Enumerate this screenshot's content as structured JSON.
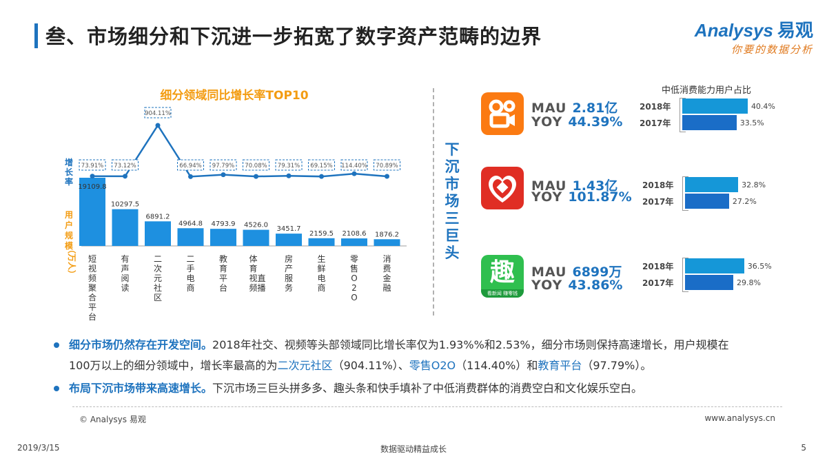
{
  "header": {
    "title": "叁、市场细分和下沉进一步拓宽了数字资产范畴的边界",
    "logo_brand": "nalysys",
    "logo_brand_a": "A",
    "logo_brand_cn": "易观",
    "logo_tagline": "你要的数据分析"
  },
  "chart_data": {
    "type": "bar+line",
    "title": "细分领域同比增长率TOP10",
    "line_axis_label": "增长率",
    "bar_axis_label": "用户规模",
    "bar_axis_unit": "（万人）",
    "categories": [
      "短视频聚合平台",
      "有声阅读",
      "二次元社区",
      "二手电商",
      "教育平台",
      "体育视频直播",
      "房产服务",
      "生鲜电商",
      "零售O2O",
      "消费金融"
    ],
    "category_lines": [
      [
        "短",
        "视",
        "频",
        "聚",
        "合",
        "平",
        "台"
      ],
      [
        "有",
        "声",
        "阅",
        "读"
      ],
      [
        "二",
        "次",
        "元",
        "社",
        "区"
      ],
      [
        "二",
        "手",
        "电",
        "商"
      ],
      [
        "教",
        "育",
        "平",
        "台"
      ],
      [
        "体",
        "育",
        "视",
        "频",
        "直",
        "播"
      ],
      [
        "房",
        "产",
        "服",
        "务"
      ],
      [
        "生",
        "鲜",
        "电",
        "商"
      ],
      [
        "零",
        "售",
        "O",
        "2",
        "O"
      ],
      [
        "消",
        "费",
        "金",
        "融"
      ]
    ],
    "series": [
      {
        "name": "用户规模",
        "unit": "万人",
        "values": [
          19109.8,
          10297.5,
          6891.2,
          4964.8,
          4793.9,
          4526.0,
          3451.7,
          2159.5,
          2108.6,
          1876.2
        ]
      },
      {
        "name": "增长率",
        "unit": "%",
        "values": [
          73.91,
          73.12,
          904.11,
          66.94,
          97.79,
          70.08,
          79.31,
          69.15,
          114.4,
          70.89
        ]
      }
    ],
    "value_labels": [
      "19109.8",
      "10297.5",
      "6891.2",
      "4964.8",
      "4793.9",
      "4526.0",
      "3451.7",
      "2159.5",
      "2108.6",
      "1876.2"
    ],
    "rate_labels": [
      "73.91%",
      "73.12%",
      "904.11%",
      "66.94%",
      "97.79%",
      "70.08%",
      "79.31%",
      "69.15%",
      "114.40%",
      "70.89%"
    ],
    "bar_max": 19109.8,
    "rate_range": [
      60,
      904.11
    ]
  },
  "lower_market": {
    "label": "下沉市场三巨头",
    "ratio_title": "中低消费能力用户占比",
    "apps": [
      {
        "name": "快手",
        "mau_label": "MAU",
        "mau": "2.81亿",
        "yoy_label": "YOY",
        "yoy": "44.39%",
        "ratios": [
          {
            "year": "2018年",
            "value": 40.4,
            "label": "40.4%"
          },
          {
            "year": "2017年",
            "value": 33.5,
            "label": "33.5%"
          }
        ]
      },
      {
        "name": "拼多多",
        "mau_label": "MAU",
        "mau": "1.43亿",
        "yoy_label": "YOY",
        "yoy": "101.87%",
        "ratios": [
          {
            "year": "2018年",
            "value": 32.8,
            "label": "32.8%"
          },
          {
            "year": "2017年",
            "value": 27.2,
            "label": "27.2%"
          }
        ]
      },
      {
        "name": "趣头条",
        "mau_label": "MAU",
        "mau": "6899万",
        "yoy_label": "YOY",
        "yoy": "43.86%",
        "icon_char": "趣",
        "icon_sub": "看新闻 赚零钱",
        "ratios": [
          {
            "year": "2018年",
            "value": 36.5,
            "label": "36.5%"
          },
          {
            "year": "2017年",
            "value": 29.8,
            "label": "29.8%"
          }
        ]
      }
    ]
  },
  "bullets": {
    "b1_strong": "细分市场仍然存在开发空间。",
    "b1_text1": "2018年社交、视频等头部领域同比增长率仅为1.93%%和2.53%，细分市场则保持高速增长，用户规模在",
    "b1_text2": "100万以上的细分领域中，增长率最高的为",
    "b1_hl1": "二次元社区",
    "b1_text3": "（904.11%）、",
    "b1_hl2": "零售O2O",
    "b1_text4": "（114.40%）和",
    "b1_hl3": "教育平台",
    "b1_text5": "（97.79%）。",
    "b2_strong": "布局下沉市场带来高速增长。",
    "b2_text": "下沉市场三巨头拼多多、趣头条和快手填补了中低消费群体的消费空白和文化娱乐空白。"
  },
  "footer": {
    "copyright": "© Analysys 易观",
    "website": "www.analysys.cn",
    "date": "2019/3/15",
    "slogan": "数据驱动精益成长",
    "page": "5"
  },
  "colors": {
    "accent_blue": "#1e73be",
    "bar_blue": "#1597d8",
    "orange": "#f39c12"
  }
}
